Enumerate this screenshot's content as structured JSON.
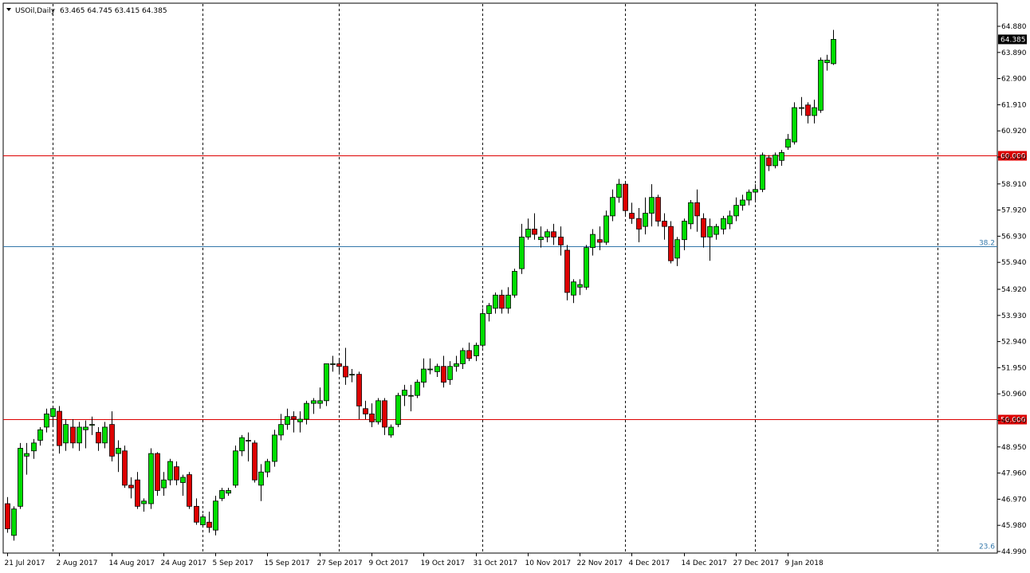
{
  "header": {
    "symbol_label": "USOil,Daily",
    "ohlc": "63.465 64.745 63.415 64.385",
    "menu_icon": "triangle-down-icon"
  },
  "colors": {
    "background": "#ffffff",
    "bull": "#00dd00",
    "bear": "#dd0000",
    "wick": "#000000",
    "level_line": "#dd0000",
    "fib_line": "#3377aa"
  },
  "chart_data": {
    "type": "candlestick",
    "symbol": "USOil",
    "timeframe": "Daily",
    "y_ticks": [
      "64.880",
      "63.890",
      "62.900",
      "61.910",
      "60.920",
      "59.930",
      "58.910",
      "57.920",
      "56.930",
      "55.940",
      "54.920",
      "53.930",
      "52.940",
      "51.950",
      "50.960",
      "49.950",
      "48.950",
      "47.960",
      "46.970",
      "45.980",
      "44.990"
    ],
    "ylim": [
      44.99,
      64.88
    ],
    "x_ticks": [
      {
        "label": "21 Jul 2017",
        "index": 0
      },
      {
        "label": "2 Aug 2017",
        "index": 8
      },
      {
        "label": "14 Aug 2017",
        "index": 16
      },
      {
        "label": "24 Aug 2017",
        "index": 24
      },
      {
        "label": "5 Sep 2017",
        "index": 32
      },
      {
        "label": "15 Sep 2017",
        "index": 40
      },
      {
        "label": "27 Sep 2017",
        "index": 48
      },
      {
        "label": "9 Oct 2017",
        "index": 56
      },
      {
        "label": "19 Oct 2017",
        "index": 64
      },
      {
        "label": "31 Oct 2017",
        "index": 72
      },
      {
        "label": "10 Nov 2017",
        "index": 80
      },
      {
        "label": "22 Nov 2017",
        "index": 88
      },
      {
        "label": "4 Dec 2017",
        "index": 96
      },
      {
        "label": "14 Dec 2017",
        "index": 104
      },
      {
        "label": "27 Dec 2017",
        "index": 112
      },
      {
        "label": "9 Jan 2018",
        "index": 120
      }
    ],
    "separator_indices": [
      7,
      30,
      51,
      73,
      95,
      115,
      143
    ],
    "horizontal_levels": [
      {
        "price": 60.0,
        "label": "60.000"
      },
      {
        "price": 50.0,
        "label": "50.000"
      }
    ],
    "fib_levels": [
      {
        "price": 56.55,
        "label": "38.2"
      },
      {
        "price": 45.05,
        "label": "23.6"
      }
    ],
    "current_price": {
      "price": 64.385,
      "label": "64.385"
    },
    "candles": [
      {
        "o": 46.8,
        "h": 47.05,
        "l": 45.7,
        "c": 45.85
      },
      {
        "o": 45.6,
        "h": 46.7,
        "l": 45.4,
        "c": 46.6
      },
      {
        "o": 46.7,
        "h": 49.1,
        "l": 46.6,
        "c": 48.9
      },
      {
        "o": 48.6,
        "h": 49.1,
        "l": 47.9,
        "c": 48.7
      },
      {
        "o": 48.8,
        "h": 49.25,
        "l": 48.5,
        "c": 49.1
      },
      {
        "o": 49.2,
        "h": 49.7,
        "l": 49.0,
        "c": 49.6
      },
      {
        "o": 49.7,
        "h": 50.4,
        "l": 49.5,
        "c": 50.2
      },
      {
        "o": 50.1,
        "h": 50.5,
        "l": 49.7,
        "c": 50.4
      },
      {
        "o": 50.3,
        "h": 50.5,
        "l": 48.7,
        "c": 49.0
      },
      {
        "o": 49.1,
        "h": 50.0,
        "l": 48.8,
        "c": 49.8
      },
      {
        "o": 49.7,
        "h": 50.0,
        "l": 48.9,
        "c": 49.1
      },
      {
        "o": 49.1,
        "h": 49.9,
        "l": 48.8,
        "c": 49.7
      },
      {
        "o": 49.6,
        "h": 49.95,
        "l": 48.9,
        "c": 49.7
      },
      {
        "o": 49.8,
        "h": 50.1,
        "l": 49.4,
        "c": 49.8
      },
      {
        "o": 49.5,
        "h": 49.7,
        "l": 48.8,
        "c": 49.1
      },
      {
        "o": 49.1,
        "h": 49.9,
        "l": 48.9,
        "c": 49.7
      },
      {
        "o": 49.8,
        "h": 50.3,
        "l": 48.4,
        "c": 48.6
      },
      {
        "o": 48.7,
        "h": 49.2,
        "l": 48.0,
        "c": 48.9
      },
      {
        "o": 48.8,
        "h": 49.0,
        "l": 47.4,
        "c": 47.5
      },
      {
        "o": 47.5,
        "h": 47.8,
        "l": 47.0,
        "c": 47.4
      },
      {
        "o": 47.7,
        "h": 48.0,
        "l": 46.6,
        "c": 46.7
      },
      {
        "o": 46.8,
        "h": 47.0,
        "l": 46.5,
        "c": 46.9
      },
      {
        "o": 46.8,
        "h": 48.9,
        "l": 46.6,
        "c": 48.7
      },
      {
        "o": 48.7,
        "h": 48.75,
        "l": 47.1,
        "c": 47.3
      },
      {
        "o": 47.4,
        "h": 48.0,
        "l": 47.1,
        "c": 47.7
      },
      {
        "o": 47.7,
        "h": 48.5,
        "l": 47.5,
        "c": 48.4
      },
      {
        "o": 48.2,
        "h": 48.4,
        "l": 47.5,
        "c": 47.7
      },
      {
        "o": 47.6,
        "h": 47.9,
        "l": 47.1,
        "c": 47.8
      },
      {
        "o": 47.9,
        "h": 48.0,
        "l": 46.6,
        "c": 46.7
      },
      {
        "o": 46.7,
        "h": 47.0,
        "l": 46.0,
        "c": 46.1
      },
      {
        "o": 46.0,
        "h": 46.4,
        "l": 45.9,
        "c": 46.3
      },
      {
        "o": 46.1,
        "h": 46.5,
        "l": 45.7,
        "c": 45.9
      },
      {
        "o": 45.8,
        "h": 47.1,
        "l": 45.6,
        "c": 46.9
      },
      {
        "o": 47.0,
        "h": 47.4,
        "l": 46.9,
        "c": 47.3
      },
      {
        "o": 47.2,
        "h": 47.4,
        "l": 47.1,
        "c": 47.3
      },
      {
        "o": 47.5,
        "h": 49.0,
        "l": 47.4,
        "c": 48.8
      },
      {
        "o": 48.8,
        "h": 49.4,
        "l": 48.6,
        "c": 49.3
      },
      {
        "o": 49.2,
        "h": 49.5,
        "l": 48.4,
        "c": 49.2
      },
      {
        "o": 49.1,
        "h": 49.2,
        "l": 47.6,
        "c": 47.7
      },
      {
        "o": 47.5,
        "h": 48.3,
        "l": 46.9,
        "c": 48.0
      },
      {
        "o": 48.0,
        "h": 48.5,
        "l": 47.8,
        "c": 48.4
      },
      {
        "o": 48.4,
        "h": 49.6,
        "l": 48.2,
        "c": 49.4
      },
      {
        "o": 49.4,
        "h": 50.2,
        "l": 49.2,
        "c": 49.8
      },
      {
        "o": 49.8,
        "h": 50.4,
        "l": 49.6,
        "c": 50.1
      },
      {
        "o": 50.1,
        "h": 50.3,
        "l": 49.5,
        "c": 50.0
      },
      {
        "o": 49.9,
        "h": 50.3,
        "l": 49.5,
        "c": 50.0
      },
      {
        "o": 50.0,
        "h": 50.7,
        "l": 49.8,
        "c": 50.6
      },
      {
        "o": 50.6,
        "h": 50.8,
        "l": 50.2,
        "c": 50.7
      },
      {
        "o": 50.6,
        "h": 51.2,
        "l": 50.4,
        "c": 50.7
      },
      {
        "o": 50.7,
        "h": 52.1,
        "l": 50.5,
        "c": 52.1
      },
      {
        "o": 52.1,
        "h": 52.4,
        "l": 51.8,
        "c": 52.1
      },
      {
        "o": 52.1,
        "h": 52.3,
        "l": 51.7,
        "c": 52.0
      },
      {
        "o": 52.0,
        "h": 52.7,
        "l": 51.3,
        "c": 51.6
      },
      {
        "o": 51.7,
        "h": 51.9,
        "l": 51.4,
        "c": 51.7
      },
      {
        "o": 51.7,
        "h": 51.8,
        "l": 50.0,
        "c": 50.5
      },
      {
        "o": 50.4,
        "h": 50.7,
        "l": 50.0,
        "c": 50.2
      },
      {
        "o": 50.2,
        "h": 50.6,
        "l": 49.7,
        "c": 49.9
      },
      {
        "o": 49.9,
        "h": 50.8,
        "l": 49.8,
        "c": 50.7
      },
      {
        "o": 50.7,
        "h": 50.8,
        "l": 49.4,
        "c": 49.7
      },
      {
        "o": 49.4,
        "h": 49.8,
        "l": 49.3,
        "c": 49.7
      },
      {
        "o": 49.8,
        "h": 51.0,
        "l": 49.7,
        "c": 50.9
      },
      {
        "o": 50.9,
        "h": 51.3,
        "l": 50.5,
        "c": 51.1
      },
      {
        "o": 50.9,
        "h": 51.3,
        "l": 50.3,
        "c": 50.9
      },
      {
        "o": 50.9,
        "h": 51.5,
        "l": 50.8,
        "c": 51.4
      },
      {
        "o": 51.4,
        "h": 52.3,
        "l": 51.2,
        "c": 51.9
      },
      {
        "o": 51.9,
        "h": 52.3,
        "l": 51.7,
        "c": 51.9
      },
      {
        "o": 51.8,
        "h": 52.1,
        "l": 51.6,
        "c": 52.0
      },
      {
        "o": 52.0,
        "h": 52.4,
        "l": 51.2,
        "c": 51.4
      },
      {
        "o": 51.5,
        "h": 52.2,
        "l": 51.3,
        "c": 52.0
      },
      {
        "o": 52.0,
        "h": 52.4,
        "l": 51.8,
        "c": 52.1
      },
      {
        "o": 52.1,
        "h": 52.7,
        "l": 51.9,
        "c": 52.6
      },
      {
        "o": 52.6,
        "h": 52.9,
        "l": 52.2,
        "c": 52.3
      },
      {
        "o": 52.4,
        "h": 52.9,
        "l": 52.2,
        "c": 52.8
      },
      {
        "o": 52.8,
        "h": 54.2,
        "l": 52.7,
        "c": 54.0
      },
      {
        "o": 54.0,
        "h": 54.4,
        "l": 53.7,
        "c": 54.3
      },
      {
        "o": 54.2,
        "h": 54.8,
        "l": 54.0,
        "c": 54.7
      },
      {
        "o": 54.7,
        "h": 54.9,
        "l": 54.0,
        "c": 54.2
      },
      {
        "o": 54.2,
        "h": 55.0,
        "l": 54.0,
        "c": 54.7
      },
      {
        "o": 54.7,
        "h": 55.7,
        "l": 54.6,
        "c": 55.6
      },
      {
        "o": 55.7,
        "h": 57.4,
        "l": 55.5,
        "c": 56.9
      },
      {
        "o": 56.9,
        "h": 57.6,
        "l": 56.8,
        "c": 57.2
      },
      {
        "o": 57.2,
        "h": 57.8,
        "l": 56.8,
        "c": 57.0
      },
      {
        "o": 56.8,
        "h": 57.3,
        "l": 56.5,
        "c": 56.9
      },
      {
        "o": 56.9,
        "h": 57.2,
        "l": 56.7,
        "c": 57.1
      },
      {
        "o": 57.1,
        "h": 57.4,
        "l": 56.6,
        "c": 56.9
      },
      {
        "o": 56.9,
        "h": 57.3,
        "l": 56.2,
        "c": 56.6
      },
      {
        "o": 56.4,
        "h": 56.6,
        "l": 54.5,
        "c": 54.8
      },
      {
        "o": 54.7,
        "h": 55.3,
        "l": 54.4,
        "c": 55.2
      },
      {
        "o": 55.0,
        "h": 55.3,
        "l": 54.7,
        "c": 55.1
      },
      {
        "o": 55.0,
        "h": 56.6,
        "l": 54.9,
        "c": 56.5
      },
      {
        "o": 56.5,
        "h": 57.2,
        "l": 56.2,
        "c": 57.0
      },
      {
        "o": 56.8,
        "h": 57.3,
        "l": 56.4,
        "c": 56.7
      },
      {
        "o": 56.7,
        "h": 57.9,
        "l": 56.6,
        "c": 57.7
      },
      {
        "o": 57.7,
        "h": 58.7,
        "l": 57.5,
        "c": 58.4
      },
      {
        "o": 58.4,
        "h": 59.1,
        "l": 58.2,
        "c": 58.9
      },
      {
        "o": 58.9,
        "h": 59.0,
        "l": 57.7,
        "c": 57.9
      },
      {
        "o": 57.8,
        "h": 58.2,
        "l": 57.4,
        "c": 57.6
      },
      {
        "o": 57.6,
        "h": 58.0,
        "l": 56.7,
        "c": 57.2
      },
      {
        "o": 57.3,
        "h": 58.4,
        "l": 57.0,
        "c": 57.8
      },
      {
        "o": 57.8,
        "h": 58.9,
        "l": 57.3,
        "c": 58.4
      },
      {
        "o": 58.4,
        "h": 58.5,
        "l": 57.3,
        "c": 57.5
      },
      {
        "o": 57.5,
        "h": 57.8,
        "l": 56.8,
        "c": 57.3
      },
      {
        "o": 57.3,
        "h": 57.5,
        "l": 55.9,
        "c": 56.0
      },
      {
        "o": 56.1,
        "h": 56.9,
        "l": 55.8,
        "c": 56.8
      },
      {
        "o": 56.8,
        "h": 57.6,
        "l": 56.4,
        "c": 57.5
      },
      {
        "o": 57.4,
        "h": 58.3,
        "l": 57.2,
        "c": 58.2
      },
      {
        "o": 58.2,
        "h": 58.7,
        "l": 57.1,
        "c": 57.7
      },
      {
        "o": 57.6,
        "h": 57.8,
        "l": 56.5,
        "c": 56.9
      },
      {
        "o": 56.9,
        "h": 57.6,
        "l": 56.0,
        "c": 57.3
      },
      {
        "o": 57.0,
        "h": 57.4,
        "l": 56.8,
        "c": 57.3
      },
      {
        "o": 57.2,
        "h": 57.7,
        "l": 57.0,
        "c": 57.6
      },
      {
        "o": 57.4,
        "h": 57.9,
        "l": 57.2,
        "c": 57.7
      },
      {
        "o": 57.7,
        "h": 58.4,
        "l": 57.5,
        "c": 58.1
      },
      {
        "o": 58.1,
        "h": 58.5,
        "l": 57.9,
        "c": 58.3
      },
      {
        "o": 58.3,
        "h": 58.7,
        "l": 58.1,
        "c": 58.6
      },
      {
        "o": 58.6,
        "h": 58.9,
        "l": 58.3,
        "c": 58.7
      },
      {
        "o": 58.7,
        "h": 60.1,
        "l": 58.6,
        "c": 60.0
      },
      {
        "o": 59.9,
        "h": 60.0,
        "l": 59.4,
        "c": 59.6
      },
      {
        "o": 59.6,
        "h": 60.1,
        "l": 59.5,
        "c": 60.0
      },
      {
        "o": 59.8,
        "h": 60.2,
        "l": 59.6,
        "c": 60.1
      },
      {
        "o": 60.3,
        "h": 60.8,
        "l": 60.2,
        "c": 60.6
      },
      {
        "o": 60.5,
        "h": 62.0,
        "l": 60.4,
        "c": 61.8
      },
      {
        "o": 61.8,
        "h": 62.2,
        "l": 61.5,
        "c": 61.8
      },
      {
        "o": 61.9,
        "h": 62.0,
        "l": 61.2,
        "c": 61.5
      },
      {
        "o": 61.5,
        "h": 62.1,
        "l": 61.2,
        "c": 61.8
      },
      {
        "o": 61.7,
        "h": 63.7,
        "l": 61.6,
        "c": 63.6
      },
      {
        "o": 63.5,
        "h": 63.8,
        "l": 63.2,
        "c": 63.6
      },
      {
        "o": 63.465,
        "h": 64.745,
        "l": 63.415,
        "c": 64.385
      }
    ]
  }
}
